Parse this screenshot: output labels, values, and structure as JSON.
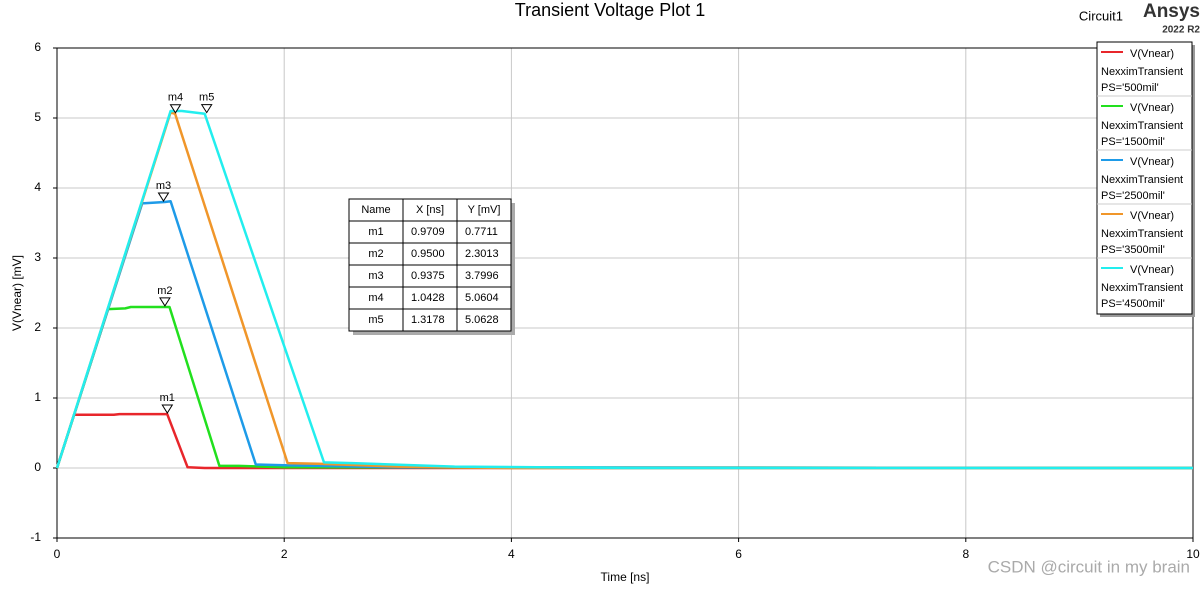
{
  "chart_data": {
    "type": "line",
    "title": "Transient Voltage Plot 1",
    "design": "Circuit1",
    "brand": "Ansys",
    "version": "2022 R2",
    "watermark": "CSDN @circuit in my brain",
    "x_label": "Time [ns]",
    "y_label": "V(Vnear) [mV]",
    "xlim": [
      0,
      10
    ],
    "ylim": [
      -1,
      6
    ],
    "xticks": [
      0,
      2,
      4,
      6,
      8,
      10
    ],
    "yticks": [
      -1,
      0,
      1,
      2,
      3,
      4,
      5,
      6
    ],
    "grid": true,
    "legend": "top-right",
    "series": [
      {
        "name": "V(Vnear)",
        "setup": "NexximTransient",
        "variation": "PS='500mil'",
        "color": "#e8262b",
        "x": [
          0,
          0.15,
          0.5,
          0.55,
          0.97,
          1.15,
          1.3,
          10
        ],
        "values": [
          0,
          0.76,
          0.76,
          0.77,
          0.77,
          0.01,
          0,
          0
        ]
      },
      {
        "name": "V(Vnear)",
        "setup": "NexximTransient",
        "variation": "PS='1500mil'",
        "color": "#22e01e",
        "x": [
          0,
          0.45,
          0.6,
          0.65,
          0.99,
          1.43,
          1.6,
          2,
          10
        ],
        "values": [
          0,
          2.27,
          2.28,
          2.3,
          2.3,
          0.03,
          0.03,
          0.01,
          0
        ]
      },
      {
        "name": "V(Vnear)",
        "setup": "NexximTransient",
        "variation": "PS='2500mil'",
        "color": "#1e9be8",
        "x": [
          0,
          0.75,
          0.95,
          1.0,
          1.75,
          2,
          3,
          10
        ],
        "values": [
          0,
          3.78,
          3.8,
          3.81,
          0.05,
          0.04,
          0.01,
          0
        ]
      },
      {
        "name": "V(Vnear)",
        "setup": "NexximTransient",
        "variation": "PS='3500mil'",
        "color": "#f0962a",
        "x": [
          0,
          1.0,
          1.04,
          2.03,
          2.3,
          3,
          4,
          10
        ],
        "values": [
          0,
          5.08,
          5.06,
          0.07,
          0.06,
          0.02,
          0,
          0
        ]
      },
      {
        "name": "V(Vnear)",
        "setup": "NexximTransient",
        "variation": "PS='4500mil'",
        "color": "#22eeee",
        "x": [
          0,
          1.0,
          1.1,
          1.3,
          2.35,
          2.6,
          3.5,
          5,
          10
        ],
        "values": [
          0,
          5.1,
          5.1,
          5.06,
          0.08,
          0.07,
          0.02,
          0,
          0
        ]
      }
    ],
    "marker_table": {
      "headers": [
        "Name",
        "X [ns]",
        "Y [mV]"
      ],
      "markers": [
        {
          "name": "m1",
          "x": 0.9709,
          "y": 0.7711
        },
        {
          "name": "m2",
          "x": {
            "value": 0.95,
            "label": "0.9500"
          },
          "y": 2.3013
        },
        {
          "name": "m3",
          "x": 0.9375,
          "y": 3.7996
        },
        {
          "name": "m4",
          "x": 1.0428,
          "y": 5.0604
        },
        {
          "name": "m5",
          "x": 1.3178,
          "y": 5.0628
        }
      ]
    }
  }
}
